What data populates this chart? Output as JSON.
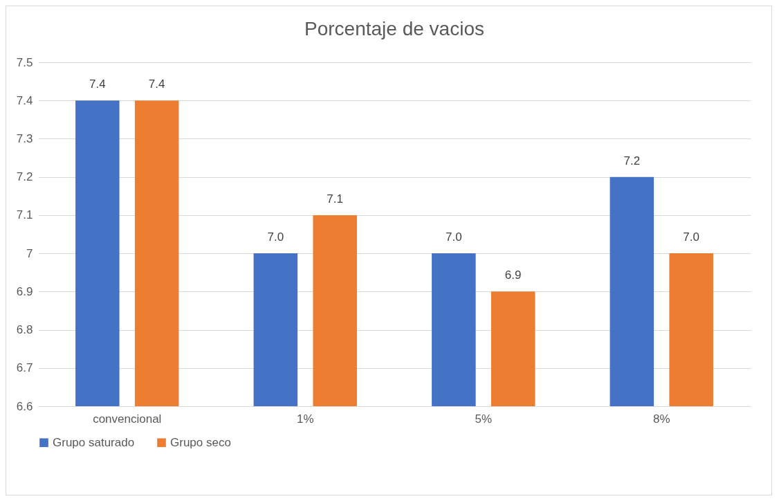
{
  "chart_data": {
    "type": "bar",
    "title": "Porcentaje de vacios",
    "categories": [
      "convencional",
      "1%",
      "5%",
      "8%"
    ],
    "series": [
      {
        "name": "Grupo saturado",
        "color": "#4472c4",
        "values": [
          7.4,
          7.0,
          7.0,
          7.2
        ],
        "value_labels": [
          "7.4",
          "7.0",
          "7.0",
          "7.2"
        ]
      },
      {
        "name": "Grupo seco",
        "color": "#ed7d31",
        "values": [
          7.4,
          7.1,
          6.9,
          7.0
        ],
        "value_labels": [
          "7.4",
          "7.1",
          "6.9",
          "7.0"
        ]
      }
    ],
    "ylim": [
      6.6,
      7.5
    ],
    "yticks": [
      6.6,
      6.7,
      6.8,
      6.9,
      7,
      7.1,
      7.2,
      7.3,
      7.4,
      7.5
    ],
    "grid": "y",
    "legend": "bottom"
  }
}
